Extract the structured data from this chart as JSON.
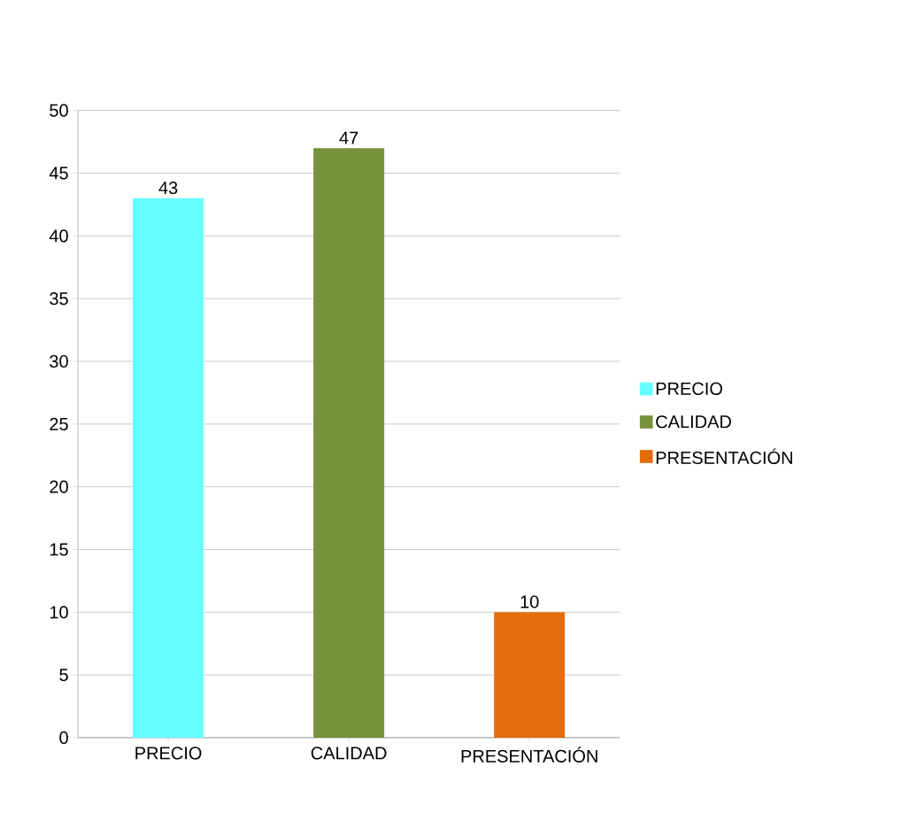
{
  "chart_data": {
    "type": "bar",
    "categories": [
      "PRECIO",
      "CALIDAD",
      "PRESENTACIÓN"
    ],
    "series": [
      {
        "name": "PRECIO",
        "color": "#66ffff",
        "values": [
          43,
          null,
          null
        ]
      },
      {
        "name": "CALIDAD",
        "color": "#77933c",
        "values": [
          null,
          47,
          null
        ]
      },
      {
        "name": "PRESENTACIÓN",
        "color": "#e46c0a",
        "values": [
          null,
          null,
          10
        ]
      }
    ],
    "ylim": [
      0,
      50
    ],
    "yticks": [
      0,
      5,
      10,
      15,
      20,
      25,
      30,
      35,
      40,
      45,
      50
    ],
    "grid": "y",
    "legend": "right",
    "data_labels": true
  }
}
